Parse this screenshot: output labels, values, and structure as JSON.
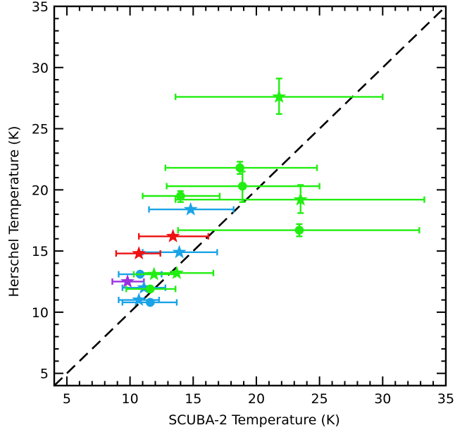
{
  "chart_data": {
    "type": "scatter",
    "title": "",
    "xlabel": "SCUBA-2 Temperature (K)",
    "ylabel": "Herschel Temperature (K)",
    "xlim": [
      4,
      35
    ],
    "ylim": [
      4,
      35
    ],
    "xticks": [
      5,
      10,
      15,
      20,
      25,
      30,
      35
    ],
    "yticks": [
      5,
      10,
      15,
      20,
      25,
      30,
      35
    ],
    "reference_line": {
      "style": "dashed",
      "slope": 1,
      "intercept": 0,
      "color": "#000000"
    },
    "grid": false,
    "colors": {
      "green": "#22ee11",
      "blue": "#1aa3e6",
      "red": "#ee1111",
      "purple": "#9b30e0"
    },
    "points": [
      {
        "x": 21.8,
        "y": 27.6,
        "xmin": 13.6,
        "xmax": 30.0,
        "ymin": 26.2,
        "ymax": 29.1,
        "marker": "star",
        "color": "green"
      },
      {
        "x": 18.7,
        "y": 21.8,
        "xmin": 12.8,
        "xmax": 24.8,
        "ymin": 21.3,
        "ymax": 22.3,
        "marker": "circle",
        "color": "green"
      },
      {
        "x": 18.9,
        "y": 20.3,
        "xmin": 12.9,
        "xmax": 25.0,
        "ymin": 19.0,
        "ymax": 21.5,
        "marker": "circle",
        "color": "green"
      },
      {
        "x": 14.0,
        "y": 19.5,
        "xmin": 11.0,
        "xmax": 17.1,
        "ymin": 19.0,
        "ymax": 19.9,
        "marker": "circle",
        "color": "green"
      },
      {
        "x": 23.5,
        "y": 19.2,
        "xmin": 13.6,
        "xmax": 33.3,
        "ymin": 18.1,
        "ymax": 20.4,
        "marker": "star",
        "color": "green"
      },
      {
        "x": 14.8,
        "y": 18.4,
        "xmin": 11.5,
        "xmax": 18.2,
        "ymin": 18.4,
        "ymax": 18.4,
        "marker": "star",
        "color": "blue"
      },
      {
        "x": 23.4,
        "y": 16.7,
        "xmin": 13.8,
        "xmax": 32.9,
        "ymin": 16.2,
        "ymax": 17.2,
        "marker": "circle",
        "color": "green"
      },
      {
        "x": 13.4,
        "y": 16.2,
        "xmin": 10.7,
        "xmax": 16.2,
        "ymin": 16.2,
        "ymax": 16.2,
        "marker": "star",
        "color": "red"
      },
      {
        "x": 13.9,
        "y": 14.9,
        "xmin": 11.0,
        "xmax": 16.9,
        "ymin": 14.9,
        "ymax": 14.9,
        "marker": "star",
        "color": "blue"
      },
      {
        "x": 10.7,
        "y": 14.8,
        "xmin": 8.9,
        "xmax": 12.4,
        "ymin": 14.8,
        "ymax": 14.8,
        "marker": "star",
        "color": "red"
      },
      {
        "x": 13.7,
        "y": 13.2,
        "xmin": 10.8,
        "xmax": 16.6,
        "ymin": 13.2,
        "ymax": 13.2,
        "marker": "star",
        "color": "green"
      },
      {
        "x": 10.8,
        "y": 13.1,
        "xmin": 9.1,
        "xmax": 12.5,
        "ymin": 13.1,
        "ymax": 13.1,
        "marker": "circle",
        "color": "blue"
      },
      {
        "x": 11.9,
        "y": 13.1,
        "xmin": 10.3,
        "xmax": 13.6,
        "ymin": 13.1,
        "ymax": 13.1,
        "marker": "star",
        "color": "green"
      },
      {
        "x": 9.8,
        "y": 12.5,
        "xmin": 8.6,
        "xmax": 11.1,
        "ymin": 12.5,
        "ymax": 12.5,
        "marker": "star",
        "color": "purple"
      },
      {
        "x": 11.1,
        "y": 12.0,
        "xmin": 9.4,
        "xmax": 12.8,
        "ymin": 12.0,
        "ymax": 12.0,
        "marker": "star",
        "color": "blue"
      },
      {
        "x": 11.6,
        "y": 11.9,
        "xmin": 9.7,
        "xmax": 13.6,
        "ymin": 11.9,
        "ymax": 11.9,
        "marker": "circle",
        "color": "green"
      },
      {
        "x": 10.7,
        "y": 11.0,
        "xmin": 9.1,
        "xmax": 12.3,
        "ymin": 11.0,
        "ymax": 11.0,
        "marker": "star",
        "color": "blue"
      },
      {
        "x": 11.6,
        "y": 10.8,
        "xmin": 9.4,
        "xmax": 13.7,
        "ymin": 10.8,
        "ymax": 10.8,
        "marker": "circle",
        "color": "blue"
      }
    ]
  }
}
